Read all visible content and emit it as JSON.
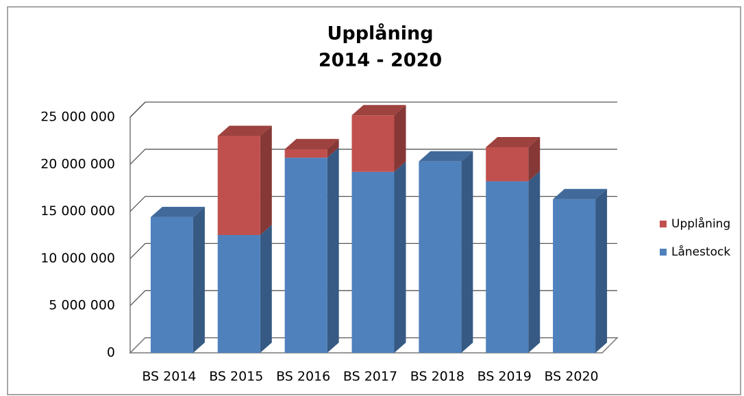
{
  "chart_data": {
    "type": "bar3d_stacked",
    "title": "Upplåning",
    "subtitle": "2014 - 2020",
    "categories": [
      "BS 2014",
      "BS 2015",
      "BS 2016",
      "BS 2017",
      "BS 2018",
      "BS 2019",
      "BS 2020"
    ],
    "series": [
      {
        "name": "Lånestock",
        "color": "#4f81bd",
        "values": [
          14400000,
          12500000,
          20700000,
          19200000,
          20300000,
          18200000,
          16300000
        ]
      },
      {
        "name": "Upplåning",
        "color": "#c0504d",
        "values": [
          null,
          10500000,
          900000,
          6000000,
          null,
          3600000,
          null
        ]
      }
    ],
    "ylim": [
      0,
      25000000
    ],
    "yticks": [
      0,
      {
        "value": 5000000,
        "label": "5 000 000"
      },
      {
        "value": 10000000,
        "label": "10 000 000"
      },
      {
        "value": 15000000,
        "label": "15 000 000"
      },
      {
        "value": 20000000,
        "label": "20 000 000"
      },
      {
        "value": 25000000,
        "label": "25 000 000"
      }
    ],
    "grid": true,
    "legend": "right"
  }
}
